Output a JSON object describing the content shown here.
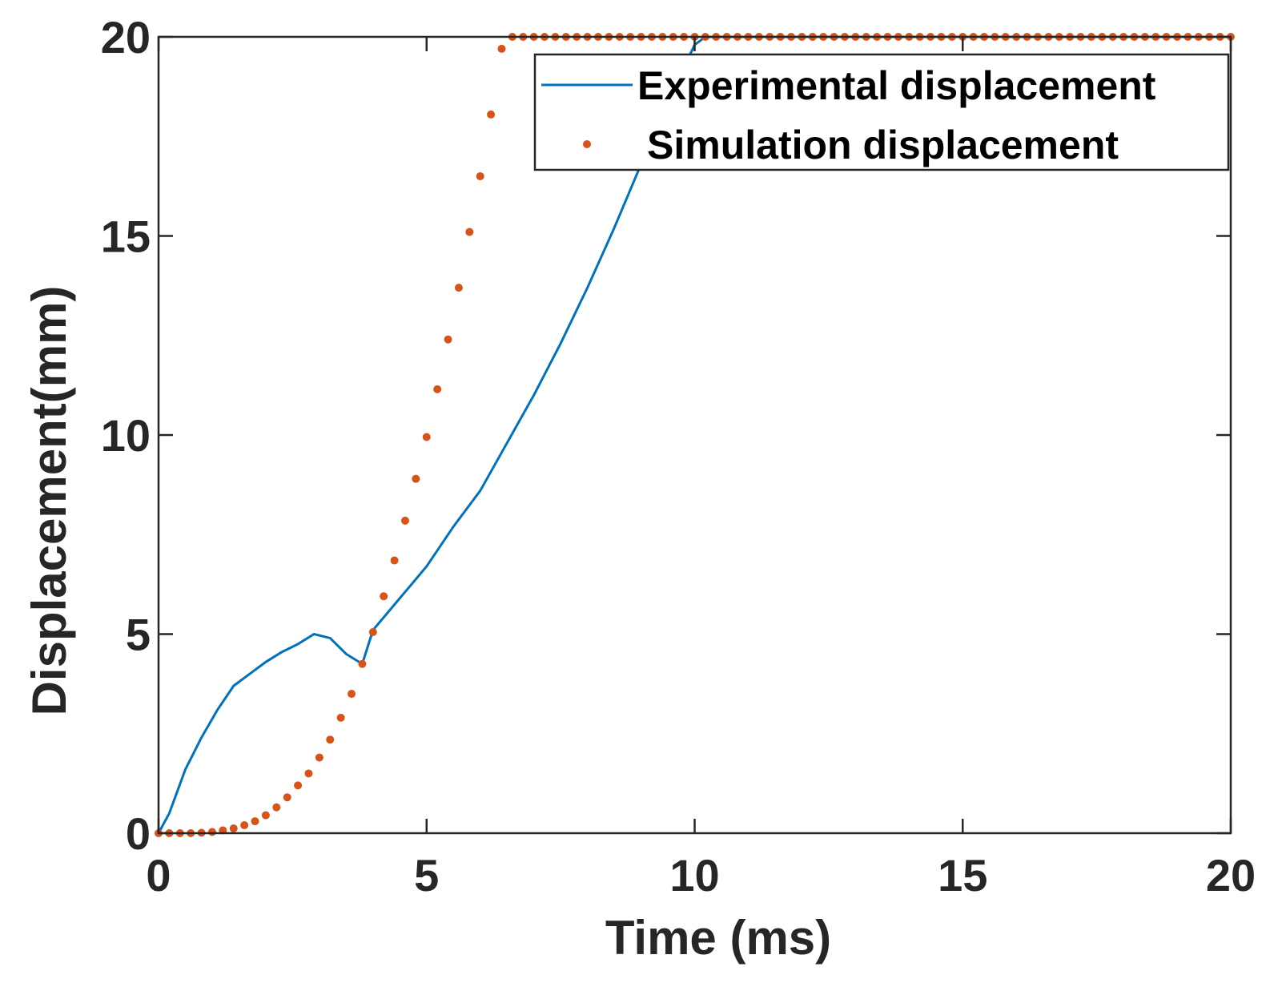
{
  "chart_data": {
    "type": "line",
    "title": "",
    "xlabel": "Time (ms)",
    "ylabel": "Displacement(mm)",
    "xlim": [
      0,
      20
    ],
    "ylim": [
      0,
      20
    ],
    "xticks": [
      0,
      5,
      10,
      15,
      20
    ],
    "yticks": [
      0,
      5,
      10,
      15,
      20
    ],
    "xtick_labels": [
      "0",
      "5",
      "10",
      "15",
      "20"
    ],
    "ytick_labels": [
      "0",
      "5",
      "10",
      "15",
      "20"
    ],
    "grid": false,
    "legend_position": "top-right",
    "series": [
      {
        "name": "Experimental displacement",
        "style": "stepped-line",
        "color": "#0072BD",
        "x": [
          0.0,
          0.2,
          0.5,
          0.8,
          1.1,
          1.4,
          1.7,
          2.0,
          2.3,
          2.6,
          2.9,
          3.2,
          3.5,
          3.8,
          4.0,
          4.5,
          5.0,
          5.5,
          6.0,
          6.5,
          7.0,
          7.5,
          8.0,
          8.5,
          9.0,
          9.5,
          10.0,
          10.2,
          20.0
        ],
        "values": [
          0.0,
          0.5,
          1.6,
          2.4,
          3.1,
          3.7,
          4.0,
          4.3,
          4.55,
          4.75,
          5.0,
          4.9,
          4.5,
          4.25,
          5.1,
          5.9,
          6.7,
          7.7,
          8.6,
          9.8,
          11.0,
          12.3,
          13.7,
          15.2,
          16.8,
          18.4,
          19.8,
          20.0,
          20.0
        ]
      },
      {
        "name": "Simulation displacement",
        "style": "dots",
        "color": "#D95319",
        "x": [
          0.0,
          0.2,
          0.4,
          0.6,
          0.8,
          1.0,
          1.2,
          1.4,
          1.6,
          1.8,
          2.0,
          2.2,
          2.4,
          2.6,
          2.8,
          3.0,
          3.2,
          3.4,
          3.6,
          3.8,
          4.0,
          4.2,
          4.4,
          4.6,
          4.8,
          5.0,
          5.2,
          5.4,
          5.6,
          5.8,
          6.0,
          6.2,
          6.4,
          6.6,
          6.8,
          7.0,
          7.2,
          7.4,
          7.6,
          7.8,
          8.0,
          8.2,
          8.4,
          8.6,
          8.8,
          9.0,
          9.2,
          9.4,
          9.6,
          9.8,
          10.0,
          10.2,
          10.4,
          10.6,
          10.8,
          11.0,
          11.2,
          11.4,
          11.6,
          11.8,
          12.0,
          12.2,
          12.4,
          12.6,
          12.8,
          13.0,
          13.2,
          13.4,
          13.6,
          13.8,
          14.0,
          14.2,
          14.4,
          14.6,
          14.8,
          15.0,
          15.2,
          15.4,
          15.6,
          15.8,
          16.0,
          16.2,
          16.4,
          16.6,
          16.8,
          17.0,
          17.2,
          17.4,
          17.6,
          17.8,
          18.0,
          18.2,
          18.4,
          18.6,
          18.8,
          19.0,
          19.2,
          19.4,
          19.6,
          19.8,
          20.0
        ],
        "values": [
          0.0,
          0.0,
          0.0,
          0.0,
          0.01,
          0.03,
          0.07,
          0.12,
          0.2,
          0.3,
          0.45,
          0.65,
          0.9,
          1.2,
          1.5,
          1.9,
          2.35,
          2.9,
          3.5,
          4.25,
          5.05,
          5.95,
          6.85,
          7.85,
          8.9,
          9.95,
          11.15,
          12.4,
          13.7,
          15.1,
          16.5,
          18.05,
          19.7,
          20.0,
          20.0,
          20.0,
          20.0,
          20.0,
          20.0,
          20.0,
          20.0,
          20.0,
          20.0,
          20.0,
          20.0,
          20.0,
          20.0,
          20.0,
          20.0,
          20.0,
          20.0,
          20.0,
          20.0,
          20.0,
          20.0,
          20.0,
          20.0,
          20.0,
          20.0,
          20.0,
          20.0,
          20.0,
          20.0,
          20.0,
          20.0,
          20.0,
          20.0,
          20.0,
          20.0,
          20.0,
          20.0,
          20.0,
          20.0,
          20.0,
          20.0,
          20.0,
          20.0,
          20.0,
          20.0,
          20.0,
          20.0,
          20.0,
          20.0,
          20.0,
          20.0,
          20.0,
          20.0,
          20.0,
          20.0,
          20.0,
          20.0,
          20.0,
          20.0,
          20.0,
          20.0,
          20.0,
          20.0,
          20.0,
          20.0,
          20.0,
          20.0
        ]
      }
    ]
  }
}
